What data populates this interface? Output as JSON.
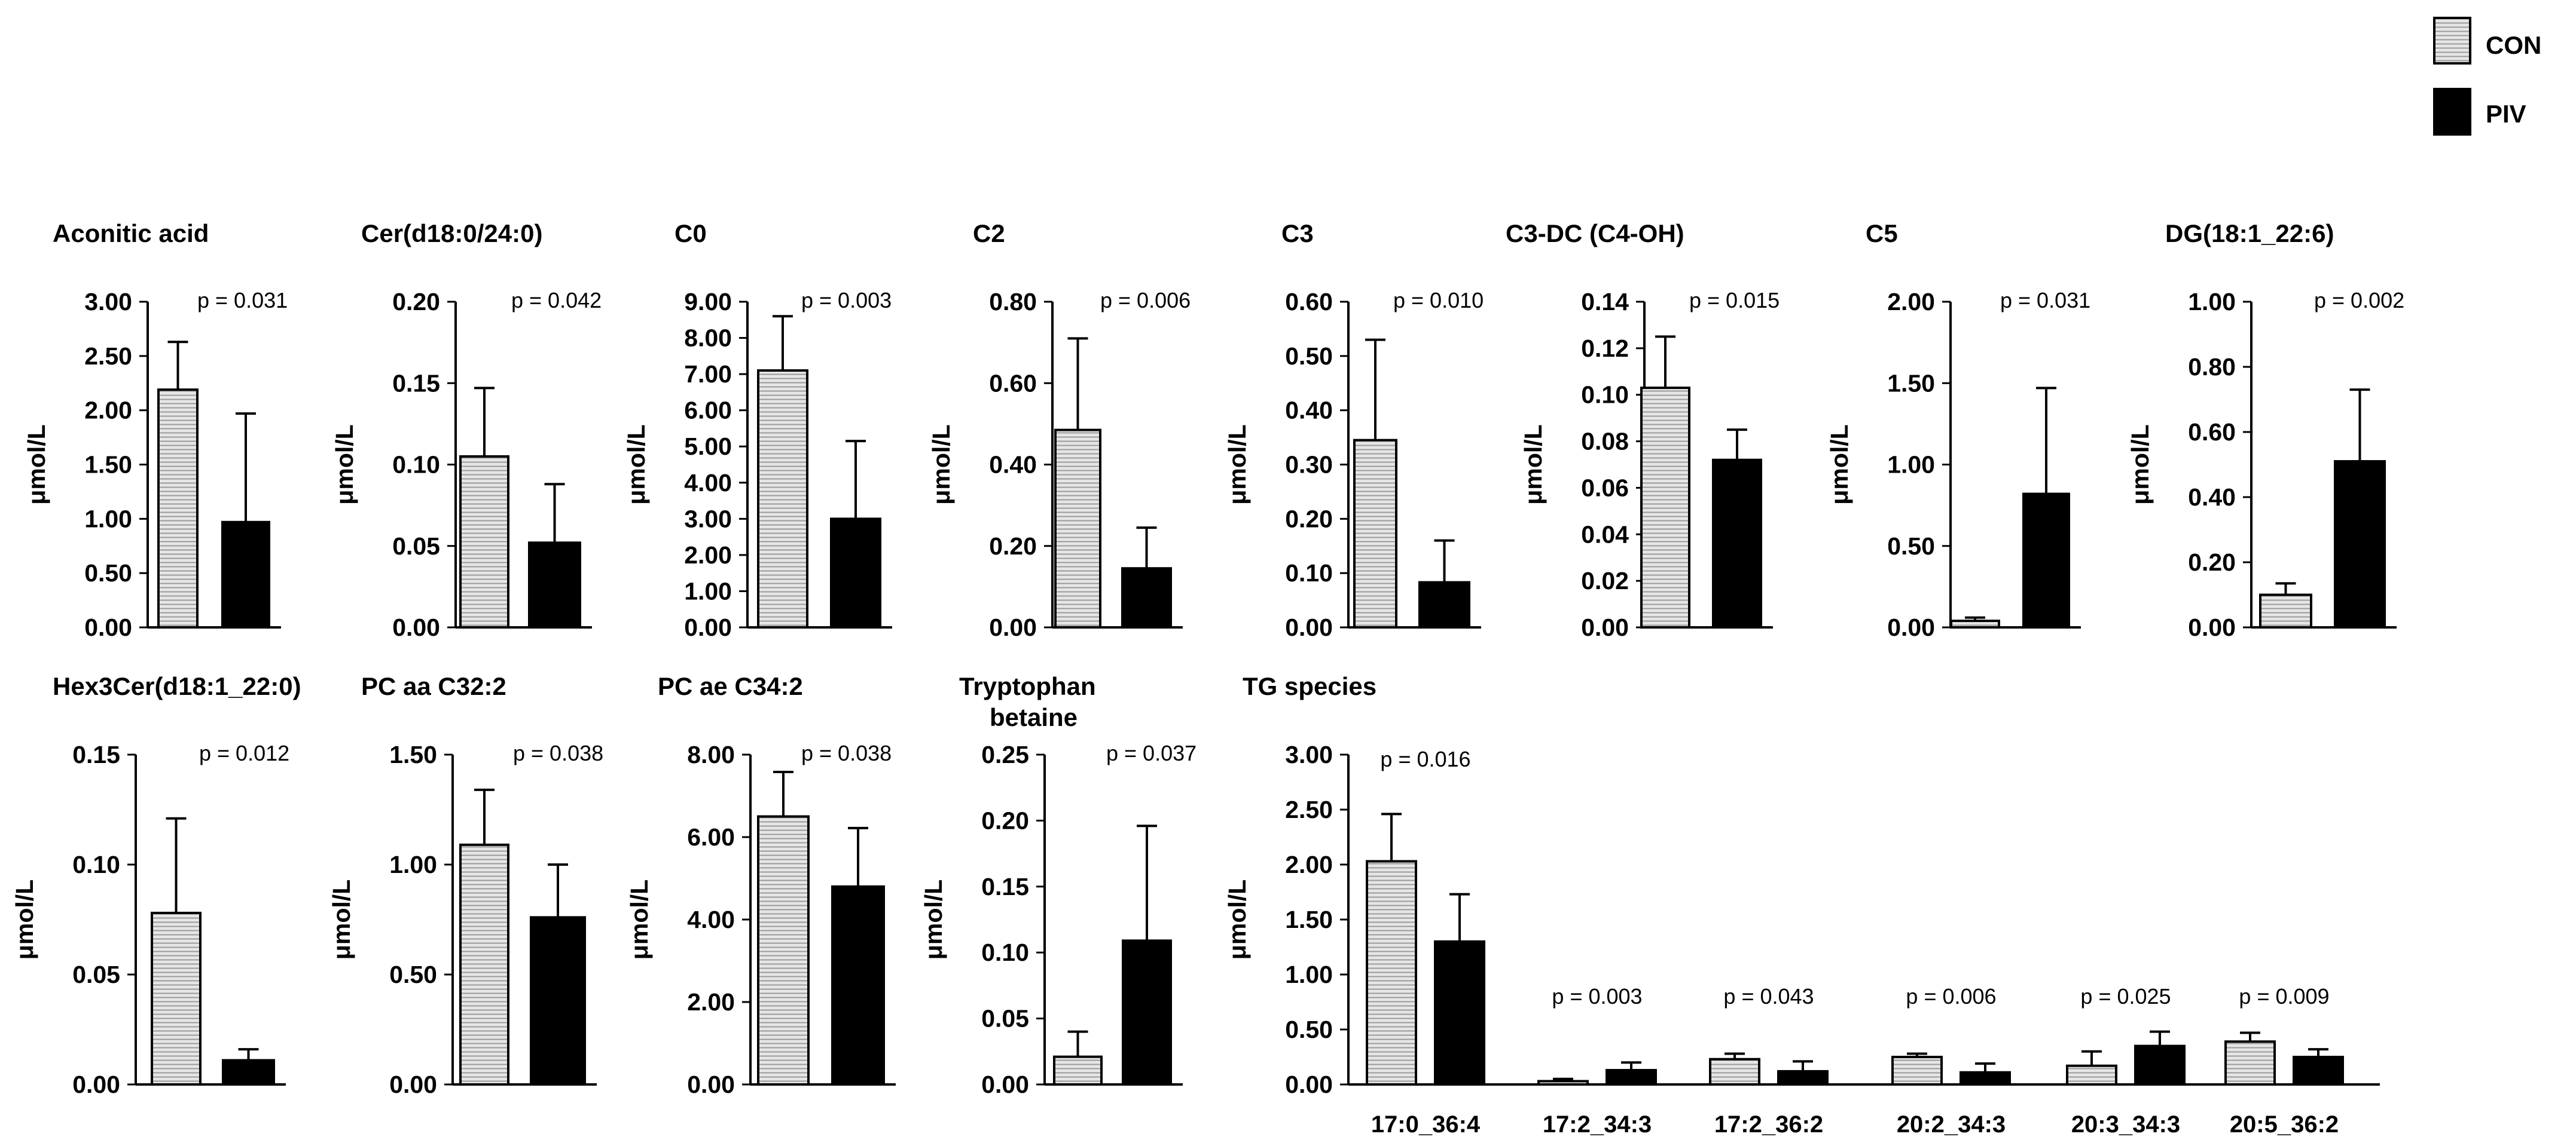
{
  "legend": [
    {
      "name": "CON",
      "pattern": "hatched-light"
    },
    {
      "name": "PIV",
      "pattern": "solid-black"
    }
  ],
  "colors": {
    "con_fill": "#e6e6e6",
    "con_stripe": "#9a9a9a",
    "piv_fill": "#000000"
  },
  "chart_data": [
    {
      "type": "bar",
      "title": "Aconitic acid",
      "ylabel": "μmol/L",
      "ylim": [
        0,
        3
      ],
      "yticks": [
        "0.00",
        "0.50",
        "1.00",
        "1.50",
        "2.00",
        "2.50",
        "3.00"
      ],
      "series": [
        {
          "name": "CON",
          "values": [
            2.19
          ],
          "errors": [
            0.44
          ]
        },
        {
          "name": "PIV",
          "values": [
            0.97
          ],
          "errors": [
            1.0
          ]
        }
      ],
      "pvalue": "p = 0.031"
    },
    {
      "type": "bar",
      "title": "Cer(d18:0/24:0)",
      "ylabel": "μmol/L",
      "ylim": [
        0,
        0.2
      ],
      "yticks": [
        "0.00",
        "0.05",
        "0.10",
        "0.15",
        "0.20"
      ],
      "series": [
        {
          "name": "CON",
          "values": [
            0.105
          ],
          "errors": [
            0.042
          ]
        },
        {
          "name": "PIV",
          "values": [
            0.052
          ],
          "errors": [
            0.036
          ]
        }
      ],
      "pvalue": "p = 0.042"
    },
    {
      "type": "bar",
      "title": "C0",
      "ylabel": "μmol/L",
      "ylim": [
        0,
        9
      ],
      "yticks": [
        "0.00",
        "1.00",
        "2.00",
        "3.00",
        "4.00",
        "5.00",
        "6.00",
        "7.00",
        "8.00",
        "9.00"
      ],
      "series": [
        {
          "name": "CON",
          "values": [
            7.1
          ],
          "errors": [
            1.5
          ]
        },
        {
          "name": "PIV",
          "values": [
            3.0
          ],
          "errors": [
            2.15
          ]
        }
      ],
      "pvalue": "p = 0.003"
    },
    {
      "type": "bar",
      "title": "C2",
      "ylabel": "μmol/L",
      "ylim": [
        0,
        0.8
      ],
      "yticks": [
        "0.00",
        "0.20",
        "0.40",
        "0.60",
        "0.80"
      ],
      "series": [
        {
          "name": "CON",
          "values": [
            0.485
          ],
          "errors": [
            0.225
          ]
        },
        {
          "name": "PIV",
          "values": [
            0.145
          ],
          "errors": [
            0.1
          ]
        }
      ],
      "pvalue": "p = 0.006"
    },
    {
      "type": "bar",
      "title": "C3",
      "ylabel": "μmol/L",
      "ylim": [
        0,
        0.6
      ],
      "yticks": [
        "0.00",
        "0.10",
        "0.20",
        "0.30",
        "0.40",
        "0.50",
        "0.60"
      ],
      "series": [
        {
          "name": "CON",
          "values": [
            0.345
          ],
          "errors": [
            0.185
          ]
        },
        {
          "name": "PIV",
          "values": [
            0.083
          ],
          "errors": [
            0.077
          ]
        }
      ],
      "pvalue": "p = 0.010"
    },
    {
      "type": "bar",
      "title": "C3-DC (C4-OH)",
      "ylabel": "μmol/L",
      "ylim": [
        0,
        0.14
      ],
      "yticks": [
        "0.00",
        "0.02",
        "0.04",
        "0.06",
        "0.08",
        "0.10",
        "0.12",
        "0.14"
      ],
      "series": [
        {
          "name": "CON",
          "values": [
            0.103
          ],
          "errors": [
            0.022
          ]
        },
        {
          "name": "PIV",
          "values": [
            0.072
          ],
          "errors": [
            0.013
          ]
        }
      ],
      "pvalue": "p = 0.015"
    },
    {
      "type": "bar",
      "title": "C5",
      "ylabel": "μmol/L",
      "ylim": [
        0,
        2
      ],
      "yticks": [
        "0.00",
        "0.50",
        "1.00",
        "1.50",
        "2.00"
      ],
      "series": [
        {
          "name": "CON",
          "values": [
            0.04
          ],
          "errors": [
            0.02
          ]
        },
        {
          "name": "PIV",
          "values": [
            0.82
          ],
          "errors": [
            0.65
          ]
        }
      ],
      "pvalue": "p = 0.031"
    },
    {
      "type": "bar",
      "title": "DG(18:1_22:6)",
      "ylabel": "μmol/L",
      "ylim": [
        0,
        1
      ],
      "yticks": [
        "0.00",
        "0.20",
        "0.40",
        "0.60",
        "0.80",
        "1.00"
      ],
      "series": [
        {
          "name": "CON",
          "values": [
            0.1
          ],
          "errors": [
            0.035
          ]
        },
        {
          "name": "PIV",
          "values": [
            0.51
          ],
          "errors": [
            0.22
          ]
        }
      ],
      "pvalue": "p = 0.002"
    },
    {
      "type": "bar",
      "title": "Hex3Cer(d18:1_22:0)",
      "ylabel": "μmol/L",
      "ylim": [
        0,
        0.15
      ],
      "yticks": [
        "0.00",
        "0.05",
        "0.10",
        "0.15"
      ],
      "series": [
        {
          "name": "CON",
          "values": [
            0.078
          ],
          "errors": [
            0.043
          ]
        },
        {
          "name": "PIV",
          "values": [
            0.011
          ],
          "errors": [
            0.005
          ]
        }
      ],
      "pvalue": "p = 0.012"
    },
    {
      "type": "bar",
      "title": "PC aa C32:2",
      "ylabel": "μmol/L",
      "ylim": [
        0,
        1.5
      ],
      "yticks": [
        "0.00",
        "0.50",
        "1.00",
        "1.50"
      ],
      "series": [
        {
          "name": "CON",
          "values": [
            1.09
          ],
          "errors": [
            0.25
          ]
        },
        {
          "name": "PIV",
          "values": [
            0.76
          ],
          "errors": [
            0.24
          ]
        }
      ],
      "pvalue": "p = 0.038"
    },
    {
      "type": "bar",
      "title": "PC ae C34:2",
      "ylabel": "μmol/L",
      "ylim": [
        0,
        8
      ],
      "yticks": [
        "0.00",
        "2.00",
        "4.00",
        "6.00",
        "8.00"
      ],
      "series": [
        {
          "name": "CON",
          "values": [
            6.5
          ],
          "errors": [
            1.08
          ]
        },
        {
          "name": "PIV",
          "values": [
            4.8
          ],
          "errors": [
            1.42
          ]
        }
      ],
      "pvalue": "p = 0.038"
    },
    {
      "type": "bar",
      "title": "Tryptophan betaine",
      "title_lines": [
        "Tryptophan",
        "betaine"
      ],
      "ylabel": "μmol/L",
      "ylim": [
        0,
        0.25
      ],
      "yticks": [
        "0.00",
        "0.05",
        "0.10",
        "0.15",
        "0.20",
        "0.25"
      ],
      "series": [
        {
          "name": "CON",
          "values": [
            0.021
          ],
          "errors": [
            0.019
          ]
        },
        {
          "name": "PIV",
          "values": [
            0.109
          ],
          "errors": [
            0.087
          ]
        }
      ],
      "pvalue": "p = 0.037"
    },
    {
      "type": "bar",
      "title": "TG species",
      "ylabel": "μmol/L",
      "ylim": [
        0,
        3
      ],
      "yticks": [
        "0.00",
        "0.50",
        "1.00",
        "1.50",
        "2.00",
        "2.50",
        "3.00"
      ],
      "categories": [
        "17:0_36:4",
        "17:2_34:3",
        "17:2_36:2",
        "20:2_34:3",
        "20:3_34:3",
        "20:5_36:2"
      ],
      "series": [
        {
          "name": "CON",
          "values": [
            2.03,
            0.03,
            0.23,
            0.25,
            0.17,
            0.39
          ],
          "errors": [
            0.43,
            0.02,
            0.05,
            0.03,
            0.13,
            0.08
          ]
        },
        {
          "name": "PIV",
          "values": [
            1.3,
            0.13,
            0.12,
            0.11,
            0.35,
            0.25
          ],
          "errors": [
            0.43,
            0.07,
            0.09,
            0.08,
            0.13,
            0.07
          ]
        }
      ],
      "pvalues": [
        "p = 0.016",
        "p = 0.003",
        "p = 0.043",
        "p = 0.006",
        "p = 0.025",
        "p = 0.009"
      ]
    }
  ]
}
